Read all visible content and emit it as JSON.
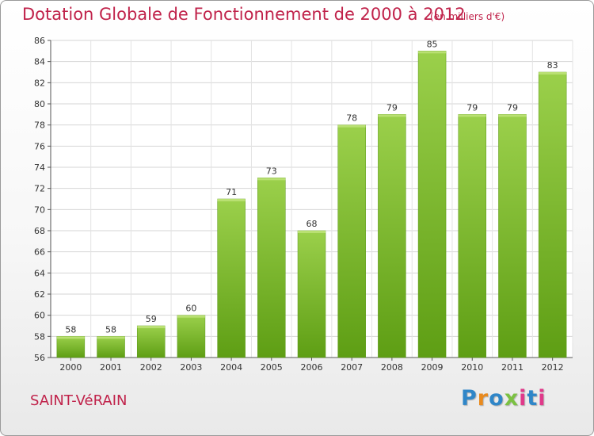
{
  "header": {
    "title": "Dotation Globale de Fonctionnement de 2000 à 2012",
    "subtitle": "(en milliers d'€)"
  },
  "footer": {
    "commune": "SAINT-VéRAIN",
    "logo_text": "Proxiti"
  },
  "colors": {
    "title": "#c0224a",
    "bar_top": "#9bd04b",
    "bar_bottom": "#5e9e14",
    "logo": [
      "#2f86c8",
      "#e98a1e",
      "#2f86c8",
      "#7bc142",
      "#e0398a",
      "#2f86c8",
      "#e0398a"
    ]
  },
  "chart_data": {
    "type": "bar",
    "categories": [
      "2000",
      "2001",
      "2002",
      "2003",
      "2004",
      "2005",
      "2006",
      "2007",
      "2008",
      "2009",
      "2010",
      "2011",
      "2012"
    ],
    "values": [
      58,
      58,
      59,
      60,
      71,
      73,
      68,
      78,
      79,
      85,
      79,
      79,
      83
    ],
    "ylim": [
      56,
      86
    ],
    "yticks": [
      56,
      58,
      60,
      62,
      64,
      66,
      68,
      70,
      72,
      74,
      76,
      78,
      80,
      82,
      84,
      86
    ],
    "grid": true,
    "show_data_labels": true
  }
}
